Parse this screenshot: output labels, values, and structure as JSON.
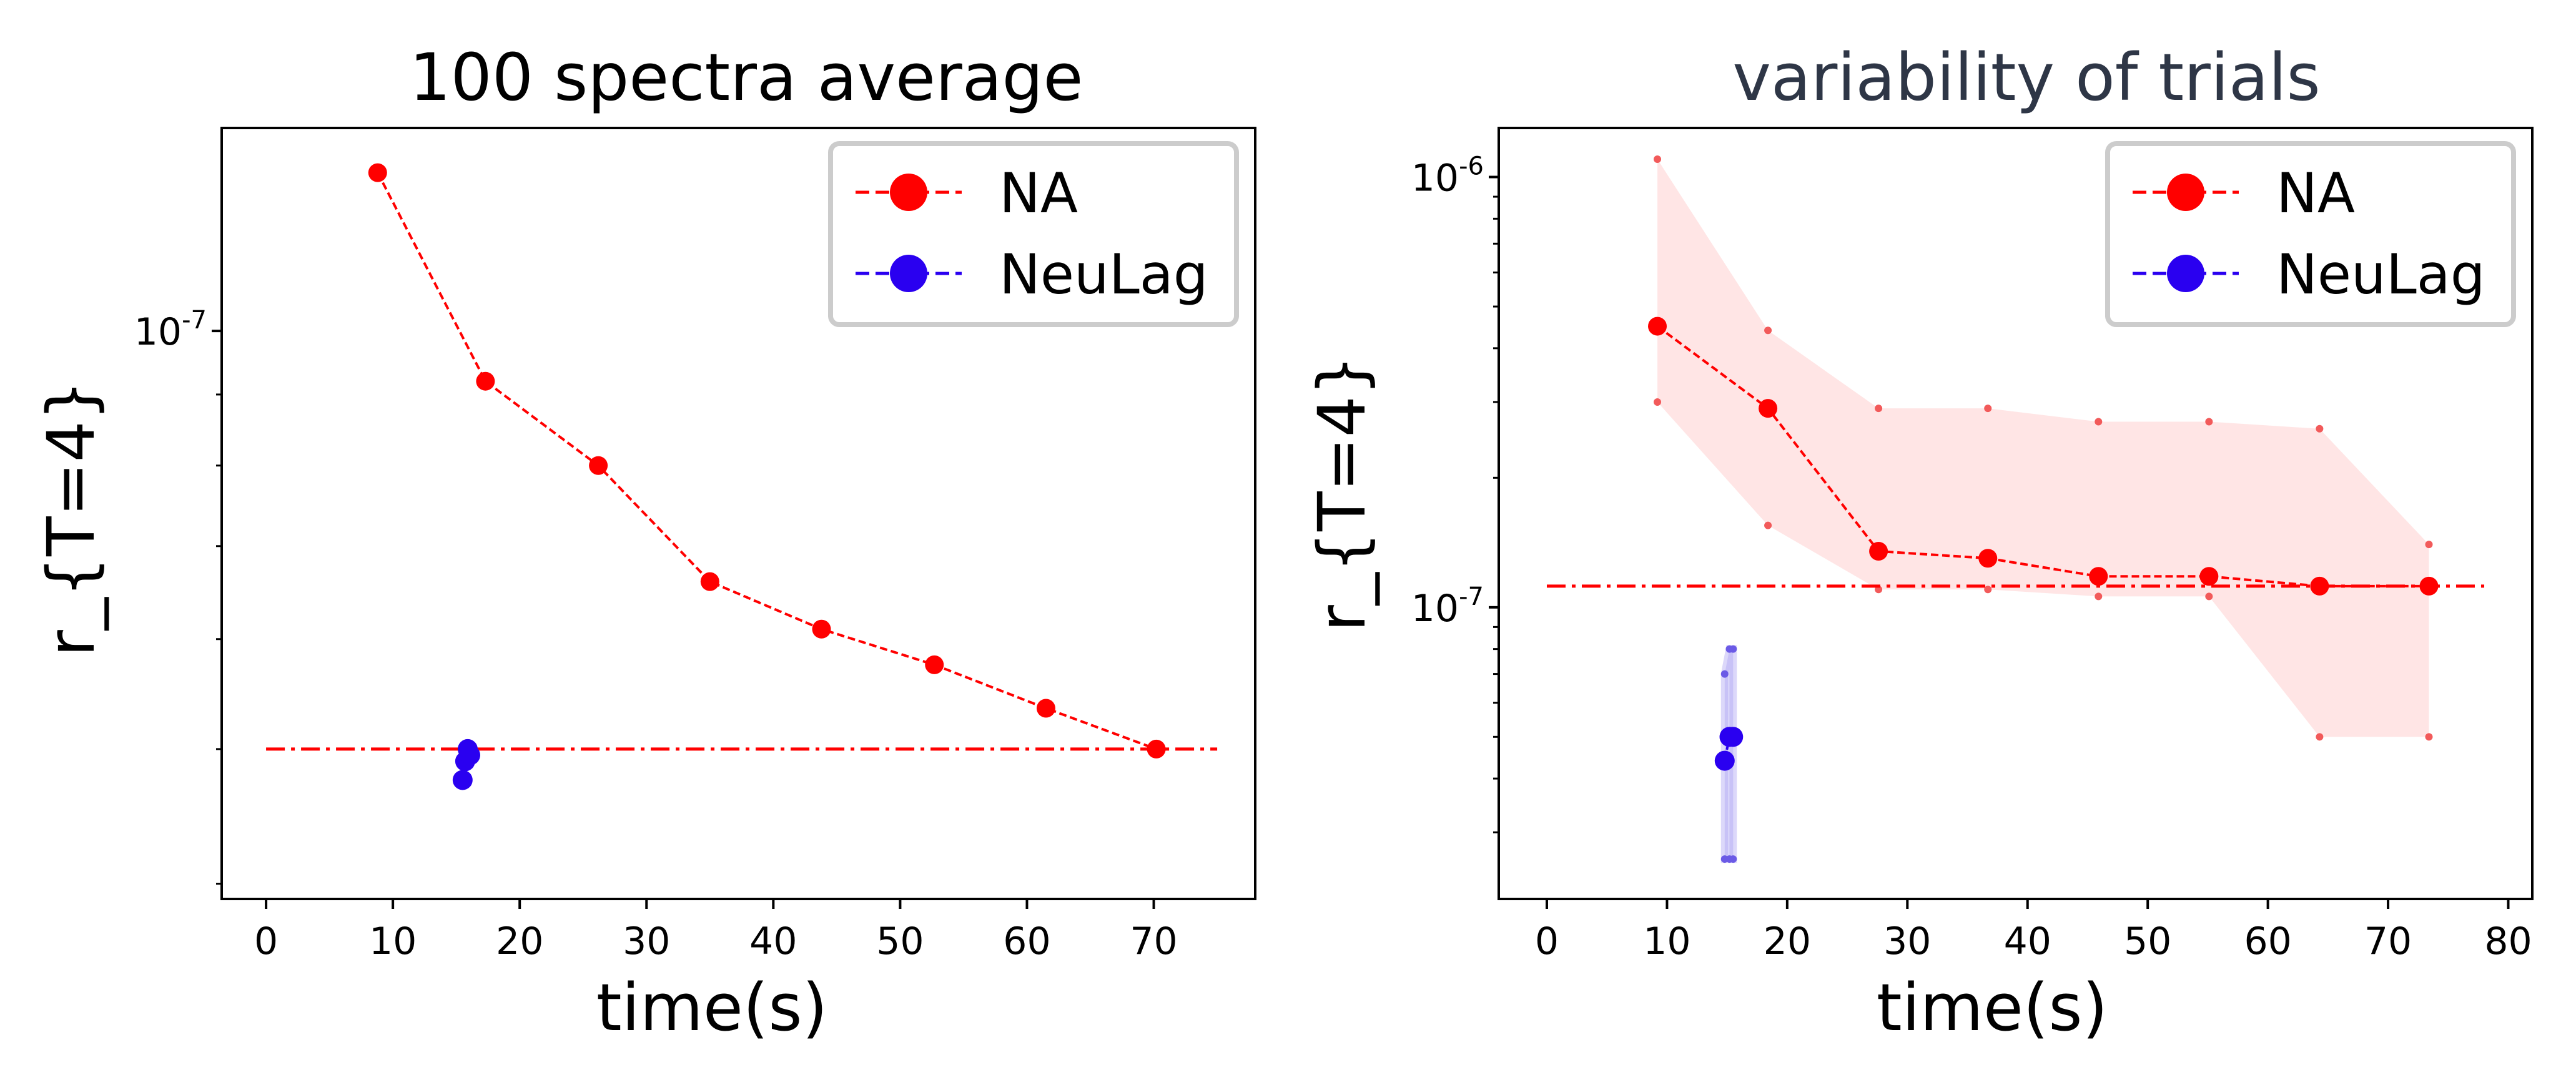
{
  "chart_data": [
    {
      "type": "line",
      "title": "100 spectra average",
      "xlabel": "time(s)",
      "ylabel": "r_{T=4}",
      "xlim": [
        -3.5,
        78
      ],
      "ylim": [
        3.9e-08,
        1.4e-07
      ],
      "yscale": "log",
      "xticks": [
        0,
        10,
        20,
        30,
        40,
        50,
        60,
        70
      ],
      "ytick_major": {
        "value": 1e-07,
        "base": "10",
        "exp": "-7"
      },
      "ytick_minor": [
        4e-08,
        5e-08,
        6e-08,
        7e-08,
        8e-08,
        9e-08
      ],
      "legend_position": "top-right",
      "series": [
        {
          "name": "NA",
          "color": "#ff0000",
          "x": [
            8.8,
            17.3,
            26.2,
            35.0,
            43.8,
            52.7,
            61.5,
            70.2
          ],
          "y": [
            1.3e-07,
            9.2e-08,
            8e-08,
            6.6e-08,
            6.1e-08,
            5.75e-08,
            5.35e-08,
            5e-08
          ]
        },
        {
          "name": "NeuLag",
          "color": "#2a00f0",
          "x": [
            15.5,
            15.7,
            15.9,
            16.1
          ],
          "y": [
            4.75e-08,
            4.9e-08,
            5e-08,
            4.95e-08
          ]
        }
      ],
      "reference_line": {
        "y": 5e-08,
        "x": [
          0,
          75
        ],
        "color": "#ff0000",
        "style": "dash-dot"
      }
    },
    {
      "type": "line",
      "title": "variability of trials",
      "xlabel": "time(s)",
      "ylabel": "r_{T=4}",
      "xlim": [
        -4,
        82
      ],
      "ylim": [
        2.1e-08,
        1.3e-06
      ],
      "yscale": "log",
      "xticks": [
        0,
        10,
        20,
        30,
        40,
        50,
        60,
        70,
        80
      ],
      "ytick_major": [
        {
          "value": 1e-06,
          "base": "10",
          "exp": "-6"
        },
        {
          "value": 1e-07,
          "base": "10",
          "exp": "-7"
        }
      ],
      "ytick_minor": [
        3e-08,
        4e-08,
        5e-08,
        6e-08,
        7e-08,
        8e-08,
        9e-08,
        2e-07,
        3e-07,
        4e-07,
        5e-07,
        6e-07,
        7e-07,
        8e-07,
        9e-07
      ],
      "legend_position": "top-right",
      "series": [
        {
          "name": "NA",
          "color": "#ff0000",
          "x": [
            9.2,
            18.4,
            27.6,
            36.7,
            45.9,
            55.1,
            64.3,
            73.4
          ],
          "y": [
            4.5e-07,
            2.9e-07,
            1.35e-07,
            1.3e-07,
            1.18e-07,
            1.18e-07,
            1.12e-07,
            1.12e-07
          ],
          "band_upper": [
            1.1e-06,
            4.4e-07,
            2.9e-07,
            2.9e-07,
            2.7e-07,
            2.7e-07,
            2.6e-07,
            1.4e-07
          ],
          "band_lower": [
            3e-07,
            1.55e-07,
            1.1e-07,
            1.1e-07,
            1.06e-07,
            1.06e-07,
            5e-08,
            5e-08
          ]
        },
        {
          "name": "NeuLag",
          "color": "#2a00f0",
          "x": [
            14.8,
            15.2,
            15.5
          ],
          "y": [
            4.4e-08,
            5e-08,
            5e-08
          ],
          "band_upper": [
            7e-08,
            8e-08,
            8e-08
          ],
          "band_lower": [
            2.6e-08,
            2.6e-08,
            2.6e-08
          ]
        }
      ],
      "reference_line": {
        "y": 1.12e-07,
        "x": [
          0,
          78
        ],
        "color": "#ff0000",
        "style": "dash-dot"
      }
    }
  ]
}
